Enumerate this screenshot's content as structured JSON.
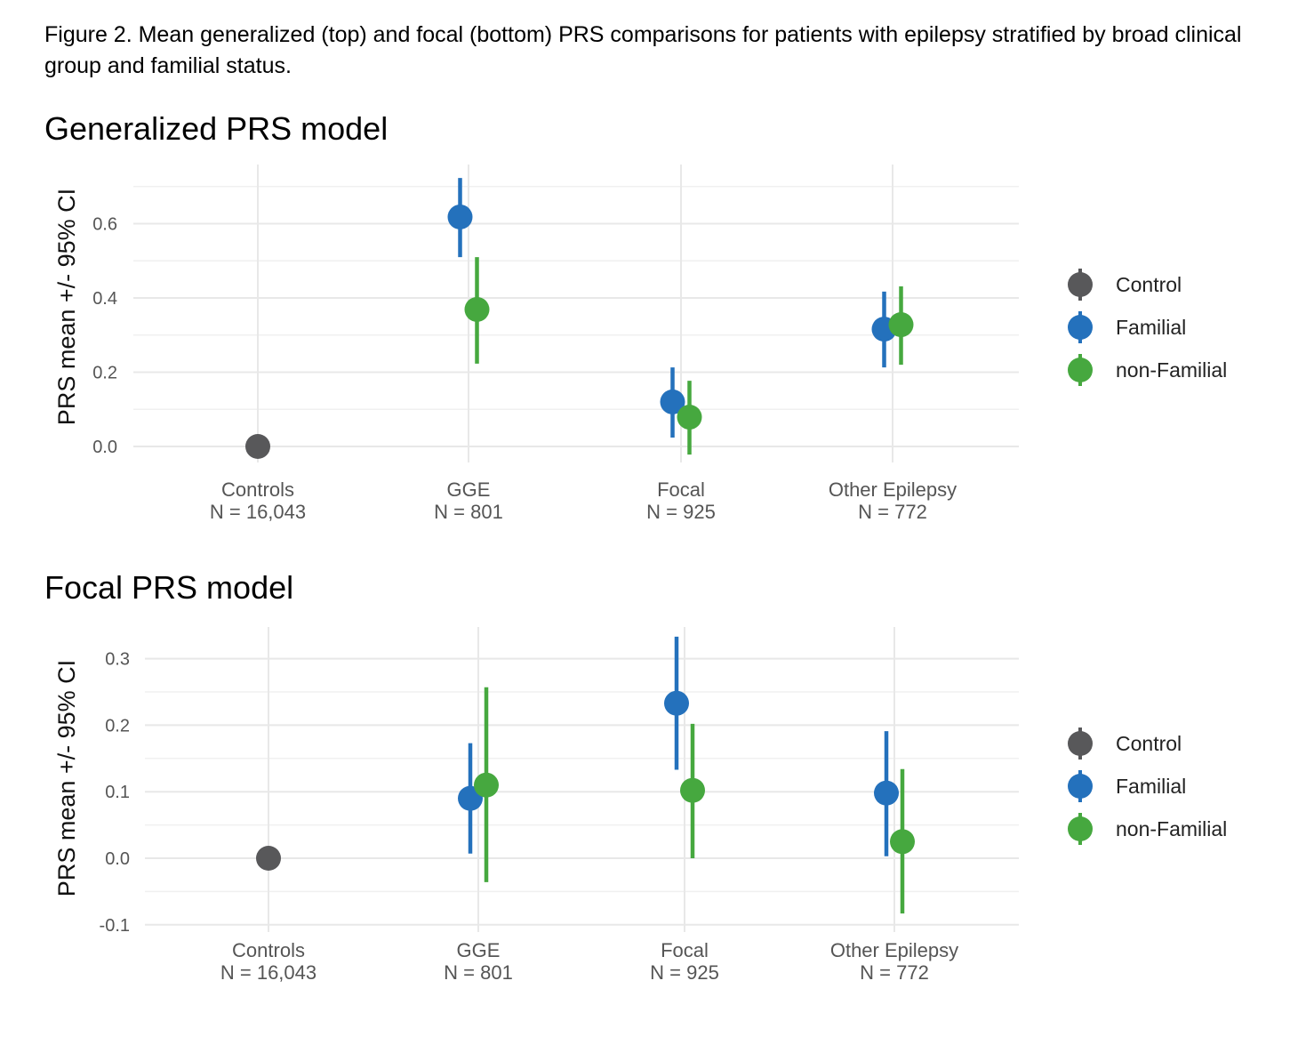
{
  "caption": "Figure 2. Mean generalized (top) and focal (bottom) PRS comparisons for patients with epilepsy stratified by broad clinical group and familial status.",
  "legend": {
    "items": [
      {
        "label": "Control",
        "color": "#58585a"
      },
      {
        "label": "Familial",
        "color": "#2471bc"
      },
      {
        "label": "non-Familial",
        "color": "#46a83f"
      }
    ]
  },
  "chart_data": [
    {
      "type": "scatter",
      "subtype": "pointrange",
      "title": "Generalized PRS model",
      "xlabel": "",
      "ylabel": "PRS mean +/- 95% CI",
      "categories": [
        "Controls",
        "GGE",
        "Focal",
        "Other Epilepsy"
      ],
      "category_n": [
        "N = 16,043",
        "N = 801",
        "N = 925",
        "N = 772"
      ],
      "ylim": [
        -0.04,
        0.76
      ],
      "yticks": [
        0.0,
        0.2,
        0.4,
        0.6
      ],
      "ytick_labels": [
        "0.0",
        "0.2",
        "0.4",
        "0.6"
      ],
      "minor_yticks": [
        0.1,
        0.3,
        0.5,
        0.7
      ],
      "grid": true,
      "legend_position": "right",
      "series": [
        {
          "name": "Control",
          "color": "#58585a",
          "points": [
            {
              "category": "Controls",
              "mean": 0.0,
              "lower": null,
              "upper": null
            }
          ]
        },
        {
          "name": "Familial",
          "color": "#2471bc",
          "points": [
            {
              "category": "GGE",
              "mean": 0.618,
              "lower": 0.51,
              "upper": 0.723
            },
            {
              "category": "Focal",
              "mean": 0.12,
              "lower": 0.024,
              "upper": 0.213
            },
            {
              "category": "Other Epilepsy",
              "mean": 0.316,
              "lower": 0.213,
              "upper": 0.417
            }
          ]
        },
        {
          "name": "non-Familial",
          "color": "#46a83f",
          "points": [
            {
              "category": "GGE",
              "mean": 0.369,
              "lower": 0.223,
              "upper": 0.51
            },
            {
              "category": "Focal",
              "mean": 0.079,
              "lower": -0.022,
              "upper": 0.177
            },
            {
              "category": "Other Epilepsy",
              "mean": 0.328,
              "lower": 0.22,
              "upper": 0.431
            }
          ]
        }
      ]
    },
    {
      "type": "scatter",
      "subtype": "pointrange",
      "title": "Focal PRS model",
      "xlabel": "",
      "ylabel": "PRS mean +/- 95% CI",
      "categories": [
        "Controls",
        "GGE",
        "Focal",
        "Other Epilepsy"
      ],
      "category_n": [
        "N = 16,043",
        "N = 801",
        "N = 925",
        "N = 772"
      ],
      "ylim": [
        -0.1,
        0.335
      ],
      "yticks": [
        -0.1,
        0.0,
        0.1,
        0.2,
        0.3
      ],
      "ytick_labels": [
        "-0.1",
        "0.0",
        "0.1",
        "0.2",
        "0.3"
      ],
      "minor_yticks": [
        -0.05,
        0.05,
        0.15,
        0.25
      ],
      "grid": true,
      "legend_position": "right",
      "series": [
        {
          "name": "Control",
          "color": "#58585a",
          "points": [
            {
              "category": "Controls",
              "mean": 0.0,
              "lower": null,
              "upper": null
            }
          ]
        },
        {
          "name": "Familial",
          "color": "#2471bc",
          "points": [
            {
              "category": "GGE",
              "mean": 0.09,
              "lower": 0.007,
              "upper": 0.173
            },
            {
              "category": "Focal",
              "mean": 0.233,
              "lower": 0.133,
              "upper": 0.333
            },
            {
              "category": "Other Epilepsy",
              "mean": 0.098,
              "lower": 0.003,
              "upper": 0.191
            }
          ]
        },
        {
          "name": "non-Familial",
          "color": "#46a83f",
          "points": [
            {
              "category": "GGE",
              "mean": 0.11,
              "lower": -0.036,
              "upper": 0.257
            },
            {
              "category": "Focal",
              "mean": 0.102,
              "lower": 0.0,
              "upper": 0.202
            },
            {
              "category": "Other Epilepsy",
              "mean": 0.025,
              "lower": -0.083,
              "upper": 0.134
            }
          ]
        }
      ]
    }
  ]
}
